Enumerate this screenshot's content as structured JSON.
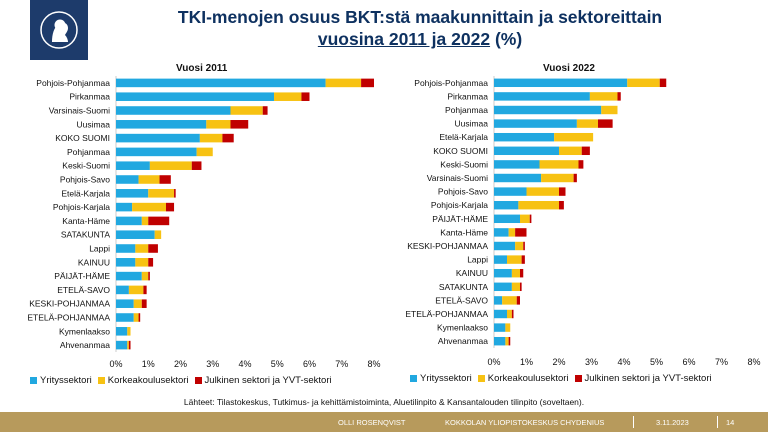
{
  "title_line1": "TKI-menojen osuus BKT:stä maakunnittain ja sektoreittain",
  "title_line2": "vuosina 2011 ja 2022",
  "title_unit": "(%)",
  "colors": {
    "yritys": "#21a8e0",
    "korkea": "#f7c213",
    "julkinen": "#c00000"
  },
  "chart_data": [
    {
      "type": "bar",
      "orientation": "horizontal",
      "stacked": true,
      "title": "Vuosi 2011",
      "categories": [
        "Pohjois-Pohjanmaa",
        "Pirkanmaa",
        "Varsinais-Suomi",
        "Uusimaa",
        "KOKO SUOMI",
        "Pohjanmaa",
        "Keski-Suomi",
        "Pohjois-Savo",
        "Etelä-Karjala",
        "Pohjois-Karjala",
        "Kanta-Häme",
        "SATAKUNTA",
        "Lappi",
        "KAINUU",
        "PÄIJÄT-HÄME",
        "ETELÄ-SAVO",
        "KESKI-POHJANMAA",
        "ETELÄ-POHJANMAA",
        "Kymenlaakso",
        "Ahvenanmaa"
      ],
      "series": [
        {
          "name": "Yrityssektori",
          "values": [
            6.5,
            4.9,
            3.55,
            2.8,
            2.6,
            2.5,
            1.05,
            0.7,
            1.0,
            0.5,
            0.8,
            1.2,
            0.6,
            0.6,
            0.8,
            0.4,
            0.55,
            0.55,
            0.35,
            0.35
          ]
        },
        {
          "name": "Korkeakoulusektori",
          "values": [
            1.1,
            0.85,
            1.0,
            0.75,
            0.7,
            0.5,
            1.3,
            0.65,
            0.8,
            1.05,
            0.2,
            0.2,
            0.4,
            0.4,
            0.2,
            0.45,
            0.25,
            0.15,
            0.1,
            0.05
          ]
        },
        {
          "name": "Julkinen sektori ja YVT-sektori",
          "values": [
            0.4,
            0.25,
            0.15,
            0.55,
            0.35,
            0.0,
            0.3,
            0.35,
            0.05,
            0.25,
            0.65,
            0.0,
            0.3,
            0.15,
            0.05,
            0.1,
            0.15,
            0.05,
            0.0,
            0.05
          ]
        }
      ],
      "xlim": [
        0,
        8
      ],
      "xticks": [
        "0%",
        "1%",
        "2%",
        "3%",
        "4%",
        "5%",
        "6%",
        "7%",
        "8%"
      ]
    },
    {
      "type": "bar",
      "orientation": "horizontal",
      "stacked": true,
      "title": "Vuosi 2022",
      "categories": [
        "Pohjois-Pohjanmaa",
        "Pirkanmaa",
        "Pohjanmaa",
        "Uusimaa",
        "Etelä-Karjala",
        "KOKO SUOMI",
        "Keski-Suomi",
        "Varsinais-Suomi",
        "Pohjois-Savo",
        "Pohjois-Karjala",
        "PÄIJÄT-HÄME",
        "Kanta-Häme",
        "KESKI-POHJANMAA",
        "Lappi",
        "KAINUU",
        "SATAKUNTA",
        "ETELÄ-SAVO",
        "ETELÄ-POHJANMAA",
        "Kymenlaakso",
        "Ahvenanmaa"
      ],
      "series": [
        {
          "name": "Yrityssektori",
          "values": [
            4.1,
            2.95,
            3.3,
            2.55,
            1.85,
            2.0,
            1.4,
            1.45,
            1.0,
            0.75,
            0.8,
            0.45,
            0.65,
            0.4,
            0.55,
            0.55,
            0.25,
            0.4,
            0.35,
            0.35
          ]
        },
        {
          "name": "Korkeakoulusektori",
          "values": [
            1.0,
            0.85,
            0.5,
            0.65,
            1.2,
            0.7,
            1.2,
            1.0,
            1.0,
            1.25,
            0.3,
            0.2,
            0.25,
            0.45,
            0.25,
            0.25,
            0.45,
            0.15,
            0.15,
            0.1
          ]
        },
        {
          "name": "Julkinen sektori ja YVT-sektori",
          "values": [
            0.2,
            0.1,
            0.0,
            0.45,
            0.0,
            0.25,
            0.15,
            0.1,
            0.2,
            0.15,
            0.05,
            0.35,
            0.05,
            0.1,
            0.1,
            0.05,
            0.1,
            0.05,
            0.0,
            0.05
          ]
        }
      ],
      "xlim": [
        0,
        8
      ],
      "xticks": [
        "0%",
        "1%",
        "2%",
        "3%",
        "4%",
        "5%",
        "6%",
        "7%",
        "8%"
      ]
    }
  ],
  "source": "Lähteet: Tilastokeskus, Tutkimus- ja kehittämistoiminta, Aluetilinpito & Kansantalouden tilinpito (soveltaen).",
  "footer": {
    "author": "OLLI ROSENQVIST",
    "org": "KOKKOLAN YLIOPISTOKESKUS CHYDENIUS",
    "date": "3.11.2023",
    "page": "14"
  }
}
